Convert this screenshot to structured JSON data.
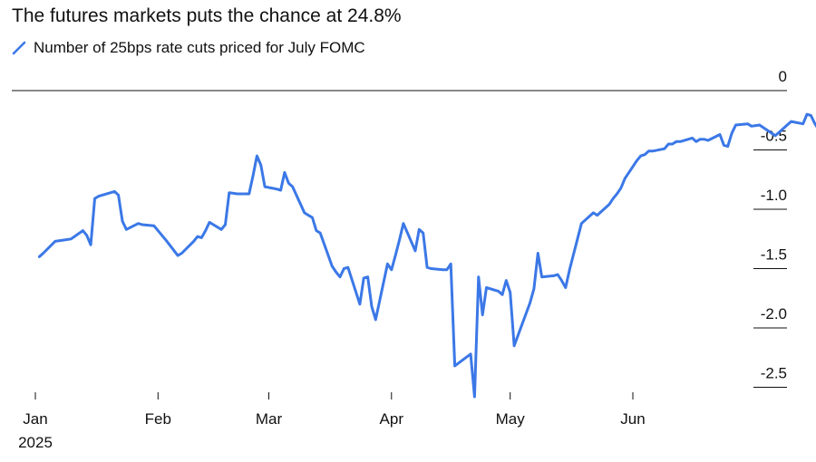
{
  "chart_data": {
    "type": "line",
    "title": "The futures markets puts the chance at 24.8%",
    "series": [
      {
        "name": "Number of 25bps rate cuts priced for July FOMC",
        "color": "#3b78e7",
        "points": [
          [
            "2025-01-02",
            -1.4
          ],
          [
            "2025-01-03",
            -1.37
          ],
          [
            "2025-01-06",
            -1.27
          ],
          [
            "2025-01-08",
            -1.26
          ],
          [
            "2025-01-10",
            -1.25
          ],
          [
            "2025-01-13",
            -1.18
          ],
          [
            "2025-01-14",
            -1.22
          ],
          [
            "2025-01-15",
            -1.3
          ],
          [
            "2025-01-16",
            -0.91
          ],
          [
            "2025-01-17",
            -0.89
          ],
          [
            "2025-01-21",
            -0.85
          ],
          [
            "2025-01-22",
            -0.88
          ],
          [
            "2025-01-23",
            -1.1
          ],
          [
            "2025-01-24",
            -1.17
          ],
          [
            "2025-01-27",
            -1.12
          ],
          [
            "2025-01-28",
            -1.13
          ],
          [
            "2025-01-31",
            -1.14
          ],
          [
            "2025-02-03",
            -1.26
          ],
          [
            "2025-02-06",
            -1.39
          ],
          [
            "2025-02-07",
            -1.37
          ],
          [
            "2025-02-10",
            -1.27
          ],
          [
            "2025-02-11",
            -1.23
          ],
          [
            "2025-02-12",
            -1.24
          ],
          [
            "2025-02-13",
            -1.18
          ],
          [
            "2025-02-14",
            -1.11
          ],
          [
            "2025-02-17",
            -1.17
          ],
          [
            "2025-02-18",
            -1.13
          ],
          [
            "2025-02-19",
            -0.86
          ],
          [
            "2025-02-21",
            -0.87
          ],
          [
            "2025-02-24",
            -0.87
          ],
          [
            "2025-02-25",
            -0.72
          ],
          [
            "2025-02-26",
            -0.55
          ],
          [
            "2025-02-27",
            -0.63
          ],
          [
            "2025-02-28",
            -0.81
          ],
          [
            "2025-03-03",
            -0.83
          ],
          [
            "2025-03-04",
            -0.84
          ],
          [
            "2025-03-05",
            -0.69
          ],
          [
            "2025-03-06",
            -0.78
          ],
          [
            "2025-03-07",
            -0.81
          ],
          [
            "2025-03-10",
            -1.03
          ],
          [
            "2025-03-11",
            -1.05
          ],
          [
            "2025-03-12",
            -1.07
          ],
          [
            "2025-03-13",
            -1.18
          ],
          [
            "2025-03-14",
            -1.2
          ],
          [
            "2025-03-17",
            -1.48
          ],
          [
            "2025-03-18",
            -1.53
          ],
          [
            "2025-03-19",
            -1.57
          ],
          [
            "2025-03-20",
            -1.5
          ],
          [
            "2025-03-21",
            -1.49
          ],
          [
            "2025-03-24",
            -1.8
          ],
          [
            "2025-03-25",
            -1.58
          ],
          [
            "2025-03-26",
            -1.57
          ],
          [
            "2025-03-27",
            -1.82
          ],
          [
            "2025-03-28",
            -1.93
          ],
          [
            "2025-03-31",
            -1.46
          ],
          [
            "2025-04-01",
            -1.51
          ],
          [
            "2025-04-02",
            -1.39
          ],
          [
            "2025-04-03",
            -1.26
          ],
          [
            "2025-04-04",
            -1.12
          ],
          [
            "2025-04-07",
            -1.35
          ],
          [
            "2025-04-08",
            -1.17
          ],
          [
            "2025-04-09",
            -1.2
          ],
          [
            "2025-04-10",
            -1.49
          ],
          [
            "2025-04-11",
            -1.5
          ],
          [
            "2025-04-14",
            -1.51
          ],
          [
            "2025-04-15",
            -1.51
          ],
          [
            "2025-04-16",
            -1.46
          ],
          [
            "2025-04-17",
            -2.32
          ],
          [
            "2025-04-21",
            -2.22
          ],
          [
            "2025-04-22",
            -2.58
          ],
          [
            "2025-04-23",
            -1.57
          ],
          [
            "2025-04-24",
            -1.89
          ],
          [
            "2025-04-25",
            -1.66
          ],
          [
            "2025-04-28",
            -1.69
          ],
          [
            "2025-04-29",
            -1.72
          ],
          [
            "2025-04-30",
            -1.6
          ],
          [
            "2025-05-01",
            -1.7
          ],
          [
            "2025-05-02",
            -2.15
          ],
          [
            "2025-05-06",
            -1.79
          ],
          [
            "2025-05-07",
            -1.67
          ],
          [
            "2025-05-08",
            -1.37
          ],
          [
            "2025-05-09",
            -1.57
          ],
          [
            "2025-05-12",
            -1.56
          ],
          [
            "2025-05-13",
            -1.55
          ],
          [
            "2025-05-14",
            -1.6
          ],
          [
            "2025-05-15",
            -1.66
          ],
          [
            "2025-05-16",
            -1.51
          ],
          [
            "2025-05-19",
            -1.12
          ],
          [
            "2025-05-20",
            -1.09
          ],
          [
            "2025-05-21",
            -1.06
          ],
          [
            "2025-05-22",
            -1.03
          ],
          [
            "2025-05-23",
            -1.05
          ],
          [
            "2025-05-26",
            -0.96
          ],
          [
            "2025-05-27",
            -0.91
          ],
          [
            "2025-05-28",
            -0.87
          ],
          [
            "2025-05-29",
            -0.82
          ],
          [
            "2025-05-30",
            -0.74
          ],
          [
            "2025-06-02",
            -0.59
          ],
          [
            "2025-06-03",
            -0.55
          ],
          [
            "2025-06-04",
            -0.54
          ],
          [
            "2025-06-05",
            -0.51
          ],
          [
            "2025-06-06",
            -0.51
          ],
          [
            "2025-06-09",
            -0.49
          ],
          [
            "2025-06-10",
            -0.45
          ],
          [
            "2025-06-11",
            -0.45
          ],
          [
            "2025-06-12",
            -0.43
          ],
          [
            "2025-06-13",
            -0.43
          ],
          [
            "2025-06-16",
            -0.4
          ],
          [
            "2025-06-17",
            -0.43
          ],
          [
            "2025-06-18",
            -0.41
          ],
          [
            "2025-06-19",
            -0.41
          ],
          [
            "2025-06-20",
            -0.42
          ],
          [
            "2025-06-23",
            -0.37
          ],
          [
            "2025-06-24",
            -0.46
          ],
          [
            "2025-06-25",
            -0.47
          ],
          [
            "2025-06-26",
            -0.36
          ],
          [
            "2025-06-27",
            -0.29
          ],
          [
            "2025-06-30",
            -0.28
          ],
          [
            "2025-07-01",
            -0.3
          ],
          [
            "2025-07-03",
            -0.29
          ],
          [
            "2025-07-07",
            -0.38
          ],
          [
            "2025-07-08",
            -0.35
          ],
          [
            "2025-07-10",
            -0.29
          ],
          [
            "2025-07-11",
            -0.26
          ],
          [
            "2025-07-14",
            -0.28
          ],
          [
            "2025-07-15",
            -0.2
          ],
          [
            "2025-07-16",
            -0.21
          ],
          [
            "2025-07-17",
            -0.28
          ],
          [
            "2025-07-18",
            -0.33
          ]
        ]
      }
    ],
    "x_ticks": [
      {
        "date": "2025-01-01",
        "label": "Jan",
        "sublabel": "2025"
      },
      {
        "date": "2025-02-01",
        "label": "Feb",
        "sublabel": ""
      },
      {
        "date": "2025-03-01",
        "label": "Mar",
        "sublabel": ""
      },
      {
        "date": "2025-04-01",
        "label": "Apr",
        "sublabel": ""
      },
      {
        "date": "2025-05-01",
        "label": "May",
        "sublabel": ""
      },
      {
        "date": "2025-06-01",
        "label": "Jun",
        "sublabel": ""
      }
    ],
    "y_ticks": [
      {
        "value": 0,
        "label": "0"
      },
      {
        "value": -0.5,
        "label": "-0.5"
      },
      {
        "value": -1.0,
        "label": "-1.0"
      },
      {
        "value": -1.5,
        "label": "-1.5"
      },
      {
        "value": -2.0,
        "label": "-2.0"
      },
      {
        "value": -2.5,
        "label": "-2.5"
      }
    ],
    "ylim": [
      -2.58,
      0
    ],
    "xlim": [
      "2025-01-01",
      "2025-07-20"
    ],
    "y_axis_side": "right",
    "grid": false,
    "legend_position": "top-left"
  }
}
